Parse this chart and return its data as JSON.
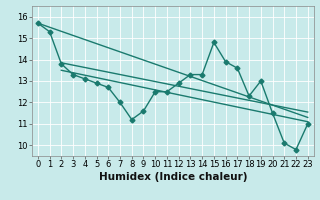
{
  "bg_color": "#c8eaea",
  "grid_color": "#ffffff",
  "line_color": "#1a7a6e",
  "line_width": 1.0,
  "marker": "D",
  "marker_size": 2.5,
  "xlabel": "Humidex (Indice chaleur)",
  "xlabel_fontsize": 7.5,
  "xlabel_bold": true,
  "tick_fontsize": 6,
  "xlim": [
    -0.5,
    23.5
  ],
  "ylim": [
    9.5,
    16.5
  ],
  "yticks": [
    10,
    11,
    12,
    13,
    14,
    15,
    16
  ],
  "xticks": [
    0,
    1,
    2,
    3,
    4,
    5,
    6,
    7,
    8,
    9,
    10,
    11,
    12,
    13,
    14,
    15,
    16,
    17,
    18,
    19,
    20,
    21,
    22,
    23
  ],
  "data_x": [
    0,
    1,
    2,
    3,
    4,
    5,
    6,
    7,
    8,
    9,
    10,
    11,
    12,
    13,
    14,
    15,
    16,
    17,
    18,
    19,
    20,
    21,
    22,
    23
  ],
  "data_y": [
    15.7,
    15.3,
    13.8,
    13.3,
    13.1,
    12.9,
    12.7,
    12.0,
    11.2,
    11.6,
    12.5,
    12.5,
    12.9,
    13.3,
    13.3,
    14.8,
    13.9,
    13.6,
    12.3,
    13.0,
    11.5,
    10.1,
    9.8,
    11.0
  ],
  "trend1_x": [
    0,
    23
  ],
  "trend1_y": [
    15.7,
    11.3
  ],
  "trend2_x": [
    2,
    23
  ],
  "trend2_y": [
    13.85,
    11.55
  ],
  "trend3_x": [
    2,
    23
  ],
  "trend3_y": [
    13.5,
    11.1
  ]
}
